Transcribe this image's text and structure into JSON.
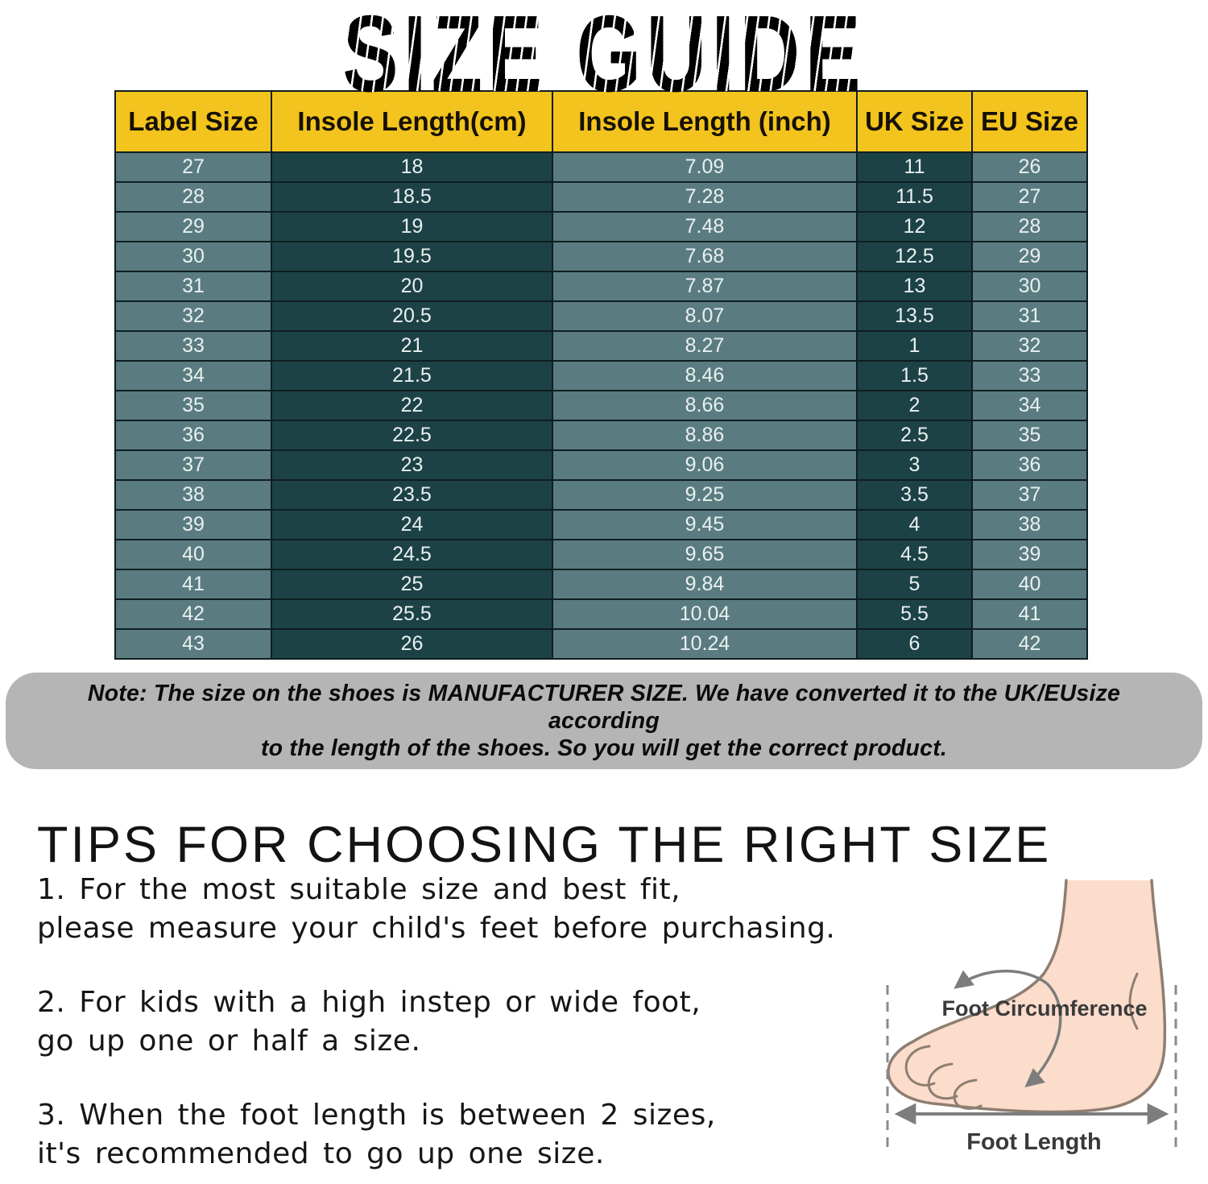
{
  "title": "SIZE GUIDE",
  "table": {
    "headers": [
      "Label Size",
      "Insole Length(cm)",
      "Insole Length  (inch)",
      "UK Size",
      "EU Size"
    ],
    "rows": [
      [
        "27",
        "18",
        "7.09",
        "11",
        "26"
      ],
      [
        "28",
        "18.5",
        "7.28",
        "11.5",
        "27"
      ],
      [
        "29",
        "19",
        "7.48",
        "12",
        "28"
      ],
      [
        "30",
        "19.5",
        "7.68",
        "12.5",
        "29"
      ],
      [
        "31",
        "20",
        "7.87",
        "13",
        "30"
      ],
      [
        "32",
        "20.5",
        "8.07",
        "13.5",
        "31"
      ],
      [
        "33",
        "21",
        "8.27",
        "1",
        "32"
      ],
      [
        "34",
        "21.5",
        "8.46",
        "1.5",
        "33"
      ],
      [
        "35",
        "22",
        "8.66",
        "2",
        "34"
      ],
      [
        "36",
        "22.5",
        "8.86",
        "2.5",
        "35"
      ],
      [
        "37",
        "23",
        "9.06",
        "3",
        "36"
      ],
      [
        "38",
        "23.5",
        "9.25",
        "3.5",
        "37"
      ],
      [
        "39",
        "24",
        "9.45",
        "4",
        "38"
      ],
      [
        "40",
        "24.5",
        "9.65",
        "4.5",
        "39"
      ],
      [
        "41",
        "25",
        "9.84",
        "5",
        "40"
      ],
      [
        "42",
        "25.5",
        "10.04",
        "5.5",
        "41"
      ],
      [
        "43",
        "26",
        "10.24",
        "6",
        "42"
      ]
    ]
  },
  "note": {
    "lines": [
      "Note: The size on the shoes is MANUFACTURER SIZE. We have converted it to the UK/EUsize according",
      "to the length of the shoes. So you will get the correct product."
    ]
  },
  "tips": {
    "heading": "TIPS FOR CHOOSING THE RIGHT SIZE",
    "items": [
      {
        "lines": [
          "1. For the most suitable size and best fit,",
          "please measure your child's feet before purchasing."
        ]
      },
      {
        "lines": [
          "2. For kids with a high instep or wide foot,",
          "go up one or half a size."
        ]
      },
      {
        "lines": [
          "3. When the foot length is between 2 sizes,",
          "it's recommended to go up one size."
        ]
      }
    ]
  },
  "diagram": {
    "circumference_label": "Foot Circumference",
    "length_label": "Foot Length"
  },
  "colors": {
    "header_bg": "#f2c41d",
    "cell_light": "#5a7c80",
    "cell_dark": "#1d4246",
    "table_border": "#0e1e20",
    "note_bg": "#b5b5b5",
    "foot_fill": "#fcdccb",
    "foot_outline": "#8e7e72",
    "diagram_line": "#7d7d7d"
  }
}
